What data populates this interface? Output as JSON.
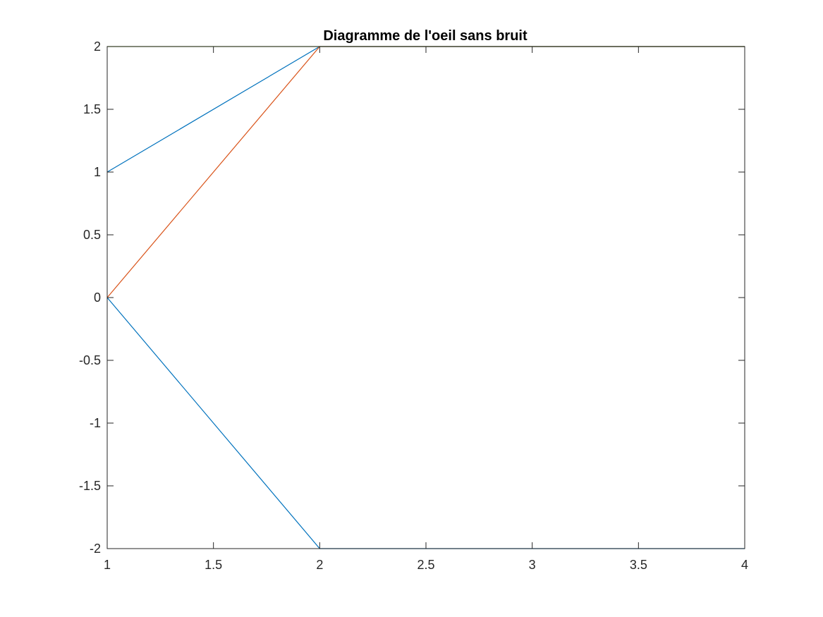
{
  "chart_data": {
    "type": "line",
    "title": "Diagramme de l'oeil sans bruit",
    "xlabel": "",
    "ylabel": "",
    "xlim": [
      1,
      4
    ],
    "ylim": [
      -2,
      2
    ],
    "xticks": [
      1,
      1.5,
      2,
      2.5,
      3,
      3.5,
      4
    ],
    "xtick_labels": [
      "1",
      "1.5",
      "2",
      "2.5",
      "3",
      "3.5",
      "4"
    ],
    "yticks": [
      -2,
      -1.5,
      -1,
      -0.5,
      0,
      0.5,
      1,
      1.5,
      2
    ],
    "ytick_labels": [
      "-2",
      "-1.5",
      "-1",
      "-0.5",
      "0",
      "0.5",
      "1",
      "1.5",
      "2"
    ],
    "grid": false,
    "legend": null,
    "series": [
      {
        "color": "#0072BD",
        "x": [
          1,
          2,
          3,
          4
        ],
        "y": [
          1,
          2,
          2,
          2
        ]
      },
      {
        "color": "#D95319",
        "x": [
          1,
          2,
          3,
          4
        ],
        "y": [
          0,
          2,
          2,
          2
        ]
      },
      {
        "color": "#0072BD",
        "x": [
          1,
          2,
          3,
          4
        ],
        "y": [
          0,
          -2,
          -2,
          -2
        ]
      },
      {
        "color": "#77AC30",
        "x": [
          1,
          2,
          3,
          4
        ],
        "y": [
          2,
          2,
          2,
          2
        ]
      }
    ]
  }
}
